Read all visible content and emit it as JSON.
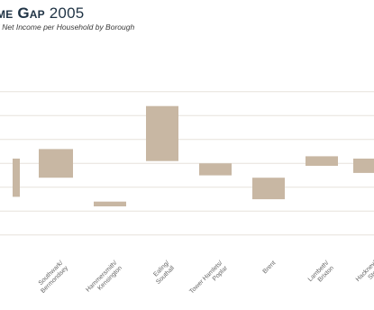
{
  "chart_data": {
    "type": "bar",
    "title": {
      "main": "me Gap",
      "year": "2005"
    },
    "subtitle": "l Net Income per Household by Borough",
    "categories": [
      "",
      "Southwark / Bermondsey",
      "Hammersmith / Kensington",
      "Ealing / Southall",
      "Tower Hamlets / Poplar",
      "Brent",
      "Lambeth / Brixton",
      "Hackney / Stoke"
    ],
    "tick_labels": [
      "",
      "Southwark/\nBermondsey",
      "Hammersmith/\nKensington",
      "Ealing/\nSouthall",
      "Tower Hamlets/\nPoplar",
      "Brent",
      "Lambeth/\nBrixton",
      "Hackney/\nStoke"
    ],
    "ranges": [
      {
        "low": 32,
        "high": 40
      },
      {
        "low": 36,
        "high": 42
      },
      {
        "low": 30,
        "high": 31
      },
      {
        "low": 39.5,
        "high": 51
      },
      {
        "low": 36.5,
        "high": 39
      },
      {
        "low": 31.5,
        "high": 36
      },
      {
        "low": 38.5,
        "high": 40.5
      },
      {
        "low": 37,
        "high": 40
      }
    ],
    "ylim": [
      20,
      60
    ],
    "yticks": [
      24,
      29,
      34,
      39,
      44,
      49,
      54
    ],
    "grid": "horizontal",
    "legend": "none",
    "bar_color": "#c8b7a3",
    "grid_color": "#e7e2dc"
  }
}
